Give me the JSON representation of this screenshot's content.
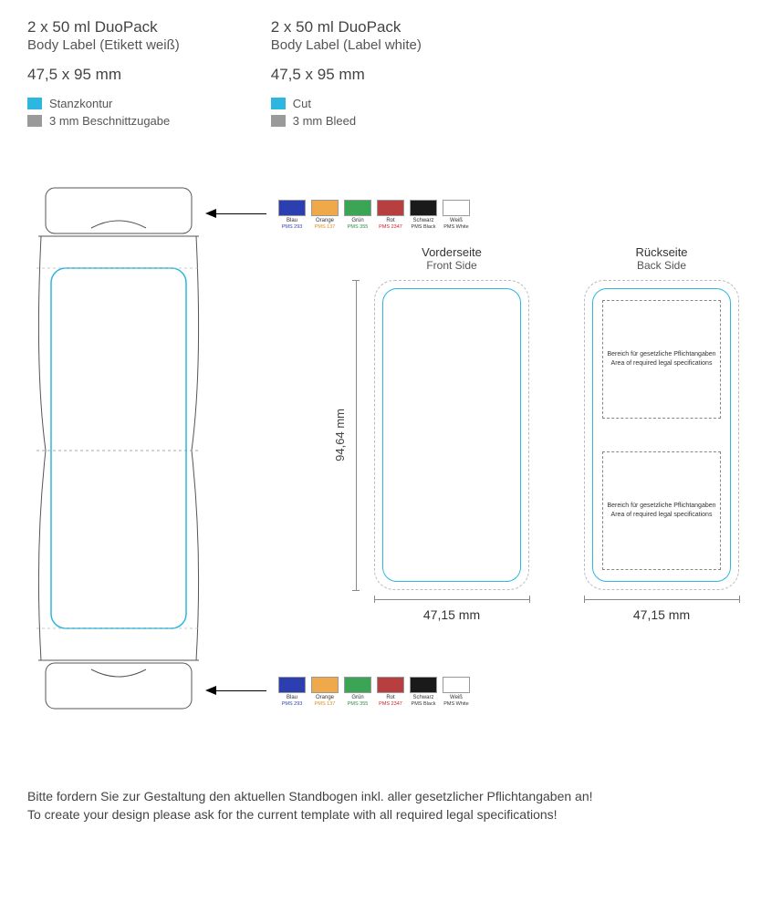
{
  "header": {
    "de": {
      "title": "2 x 50 ml DuoPack",
      "subtitle": "Body Label (Etikett weiß)",
      "dims": "47,5 x 95 mm"
    },
    "en": {
      "title": "2 x 50 ml DuoPack",
      "subtitle": "Body Label (Label white)",
      "dims": "47,5 x 95 mm"
    }
  },
  "legend": {
    "cut_color": "#2db7e0",
    "bleed_color": "#9a9a9a",
    "de": {
      "cut": "Stanzkontur",
      "bleed": "3 mm Beschnittzugabe"
    },
    "en": {
      "cut": "Cut",
      "bleed": "3 mm Bleed"
    }
  },
  "swatches": [
    {
      "name": "Blau",
      "code": "PMS 293",
      "fill": "#2c3fb1",
      "code_color": "#2c3fb1"
    },
    {
      "name": "Orange",
      "code": "PMS 137",
      "fill": "#f0a94a",
      "code_color": "#e08a1a"
    },
    {
      "name": "Grün",
      "code": "PMS 355",
      "fill": "#3aa655",
      "code_color": "#2a8c42"
    },
    {
      "name": "Rot",
      "code": "PMS 2347",
      "fill": "#b83f3f",
      "code_color": "#c22"
    },
    {
      "name": "Schwarz",
      "code": "PMS Black",
      "fill": "#1a1a1a",
      "code_color": "#333"
    },
    {
      "name": "Weiß",
      "code": "PMS White",
      "fill": "#ffffff",
      "code_color": "#333"
    }
  ],
  "panels": {
    "front": {
      "de": "Vorderseite",
      "en": "Front Side"
    },
    "back": {
      "de": "Rückseite",
      "en": "Back Side"
    }
  },
  "legal": {
    "de": "Bereich für gesetzliche Pflichtangaben",
    "en": "Area of required legal specifications"
  },
  "dimensions": {
    "height": "94,64 mm",
    "width": "47,15 mm"
  },
  "footer": {
    "de": "Bitte fordern Sie zur Gestaltung den aktuellen Standbogen inkl. aller gesetzlicher Pflichtangaben an!",
    "en": "To create your design please ask for the current template with all required legal specifications!"
  },
  "colors": {
    "cut_stroke": "#2db7e0",
    "bleed_stroke": "#cccccc",
    "outline": "#555555",
    "text": "#333333"
  }
}
